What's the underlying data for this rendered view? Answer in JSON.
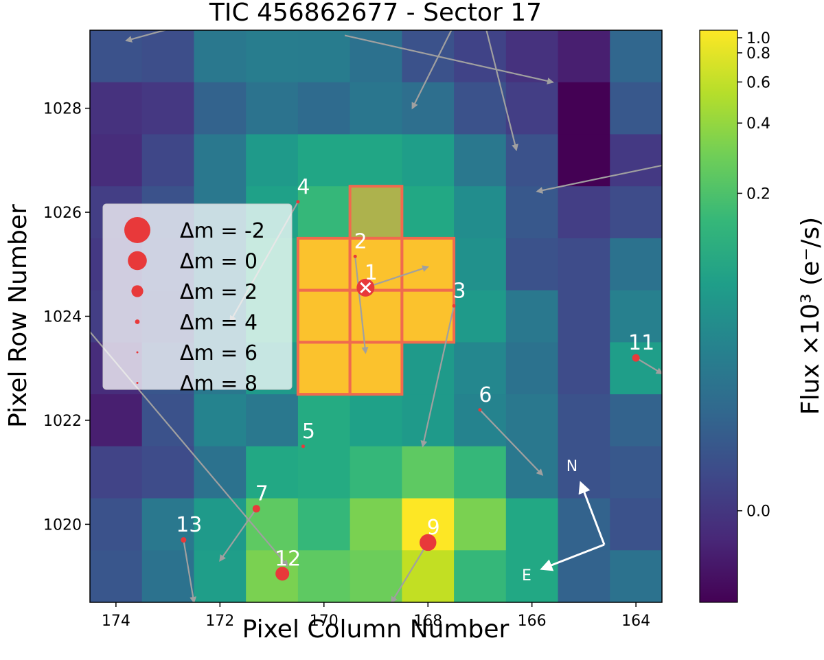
{
  "chart_data": {
    "type": "heatmap",
    "title": "TIC 456862677 - Sector 17",
    "xlabel": "Pixel Column Number",
    "ylabel": "Pixel Row Number",
    "xlim": [
      174.5,
      163.5
    ],
    "ylim": [
      1018.5,
      1029.5
    ],
    "x_ticks": [
      174,
      172,
      170,
      168,
      166,
      164
    ],
    "y_ticks": [
      1020,
      1022,
      1024,
      1026,
      1028
    ],
    "columns": [
      174,
      173,
      172,
      171,
      170,
      169,
      168,
      167,
      166,
      165,
      164
    ],
    "rows": [
      1029,
      1028,
      1027,
      1026,
      1025,
      1024,
      1023,
      1022,
      1021,
      1020,
      1019
    ],
    "flux_colors": [
      [
        "#3b528b",
        "#3d4e8a",
        "#2a788e",
        "#287d8e",
        "#287c8e",
        "#2c718e",
        "#3b528b",
        "#404387",
        "#46327e",
        "#481f70",
        "#31678e"
      ],
      [
        "#46327e",
        "#453882",
        "#33638d",
        "#2c738e",
        "#2f6b8e",
        "#2a768e",
        "#2e6f8e",
        "#3b528b",
        "#433e85",
        "#440154",
        "#38588c"
      ],
      [
        "#472d7b",
        "#3f4788",
        "#2a788e",
        "#1f9a8a",
        "#21a685",
        "#21a685",
        "#1f9e89",
        "#2a788e",
        "#3b528b",
        "#440154",
        "#443983"
      ],
      [
        "#433e85",
        "#3b528b",
        "#2a788e",
        "#1fa188",
        "#35b779",
        "#50c46a",
        "#22a884",
        "#228d8d",
        "#38588c",
        "#433e85",
        "#3e4c8a"
      ],
      [
        "#443983",
        "#3e4c8a",
        "#2a788e",
        "#25ab82",
        "#fde725",
        "#fde725",
        "#fde725",
        "#21918c",
        "#3b528b",
        "#3e4c8a",
        "#2c728e"
      ],
      [
        "#433e85",
        "#3f4788",
        "#2a788e",
        "#25ab82",
        "#fde725",
        "#fde725",
        "#fde725",
        "#1f9a8a",
        "#2a788e",
        "#3e4c8a",
        "#27808e"
      ],
      [
        "#472d7b",
        "#39568c",
        "#2a788e",
        "#1f9a8a",
        "#fde725",
        "#fde725",
        "#1f9a8a",
        "#24878e",
        "#2c728e",
        "#3e4c8a",
        "#1f9e89"
      ],
      [
        "#481f70",
        "#3b528b",
        "#25838e",
        "#2a788e",
        "#25ab82",
        "#1fa188",
        "#1f9a8a",
        "#25838e",
        "#2a788e",
        "#3b528b",
        "#33638d"
      ],
      [
        "#414487",
        "#3e4c8a",
        "#2c728e",
        "#22a884",
        "#25ab82",
        "#35b779",
        "#5ec962",
        "#35b779",
        "#2a788e",
        "#3b528b",
        "#38588c"
      ],
      [
        "#3b528b",
        "#2a788e",
        "#1f9a8a",
        "#5ec962",
        "#35b779",
        "#7ad151",
        "#fde725",
        "#7ad151",
        "#22a884",
        "#33638d",
        "#3b528b"
      ],
      [
        "#39568c",
        "#2c728e",
        "#1f9e89",
        "#7ad151",
        "#5ec962",
        "#6ccd5a",
        "#c2df23",
        "#35b779",
        "#22a884",
        "#33638d",
        "#2c728e"
      ]
    ],
    "aperture_pixels": [
      [
        169,
        1026
      ],
      [
        170,
        1025
      ],
      [
        169,
        1025
      ],
      [
        168,
        1025
      ],
      [
        170,
        1024
      ],
      [
        169,
        1024
      ],
      [
        168,
        1024
      ],
      [
        170,
        1023
      ],
      [
        169,
        1023
      ]
    ],
    "aperture_fill": "#f9a435",
    "stars": [
      {
        "label": "1",
        "col": 169.2,
        "row": 1024.55,
        "dm": 0,
        "pm_to": [
          168.0,
          1024.95
        ],
        "target": true
      },
      {
        "label": "2",
        "col": 169.4,
        "row": 1025.15,
        "dm": 7,
        "pm_to": [
          169.2,
          1023.3
        ]
      },
      {
        "label": "3",
        "col": 167.5,
        "row": 1024.2,
        "dm": 7,
        "pm_to": [
          168.1,
          1021.5
        ]
      },
      {
        "label": "4",
        "col": 170.5,
        "row": 1026.2,
        "dm": 7,
        "pm_to": [
          171.8,
          1023.9
        ]
      },
      {
        "label": "5",
        "col": 170.4,
        "row": 1021.5,
        "dm": 7,
        "pm_to": null
      },
      {
        "label": "6",
        "col": 167.0,
        "row": 1022.2,
        "dm": 7,
        "pm_to": [
          165.8,
          1020.95
        ]
      },
      {
        "label": "7",
        "col": 171.3,
        "row": 1020.3,
        "dm": 5,
        "pm_to": [
          172.0,
          1019.3
        ]
      },
      {
        "label": "9",
        "col": 168.0,
        "row": 1019.65,
        "dm": 0.5,
        "pm_to": [
          168.7,
          1018.5
        ]
      },
      {
        "label": "11",
        "col": 164.0,
        "row": 1023.2,
        "dm": 5,
        "pm_to": [
          163.5,
          1022.9
        ]
      },
      {
        "label": "12",
        "col": 170.8,
        "row": 1019.05,
        "dm": 2,
        "pm_to": null
      },
      {
        "label": "13",
        "col": 172.7,
        "row": 1019.7,
        "dm": 6,
        "pm_to": [
          172.5,
          1018.5
        ]
      }
    ],
    "extra_pm_vectors": [
      [
        [
          172.7,
          1029.6
        ],
        [
          173.8,
          1029.3
        ]
      ],
      [
        [
          169.6,
          1029.4
        ],
        [
          165.6,
          1028.5
        ]
      ],
      [
        [
          167.5,
          1029.6
        ],
        [
          168.3,
          1028.0
        ]
      ],
      [
        [
          166.9,
          1029.6
        ],
        [
          166.3,
          1027.2
        ]
      ],
      [
        [
          163.5,
          1026.9
        ],
        [
          165.9,
          1026.4
        ]
      ],
      [
        [
          174.5,
          1023.7
        ],
        [
          170.7,
          1019.2
        ]
      ]
    ],
    "legend": [
      {
        "label": "Δm =  -2",
        "dm": -2
      },
      {
        "label": "Δm =  0",
        "dm": 0
      },
      {
        "label": "Δm =  2",
        "dm": 2
      },
      {
        "label": "Δm =  4",
        "dm": 4
      },
      {
        "label": "Δm =  6",
        "dm": 6
      },
      {
        "label": "Δm =  8",
        "dm": 8
      }
    ],
    "legend_placement": "center-left",
    "compass": {
      "north": "N",
      "east": "E"
    },
    "colorbar": {
      "label": "Flux ×10³ (e⁻/s)",
      "ticks": [
        "1.0",
        "0.8",
        "0.6",
        "0.4",
        "0.2",
        "0.0"
      ],
      "tick_values": [
        1.0,
        0.8,
        0.6,
        0.4,
        0.2,
        0.0
      ],
      "stops": [
        "#440154",
        "#482878",
        "#3e4989",
        "#31688e",
        "#26828e",
        "#1f9e89",
        "#35b779",
        "#6ece58",
        "#b5de2b",
        "#fde725"
      ]
    },
    "colors": {
      "star_marker": "#e8393a",
      "pm_arrow": "#a0a0a0",
      "aperture_edge": "#f06a4e",
      "target_marker": "#ffffff"
    }
  }
}
